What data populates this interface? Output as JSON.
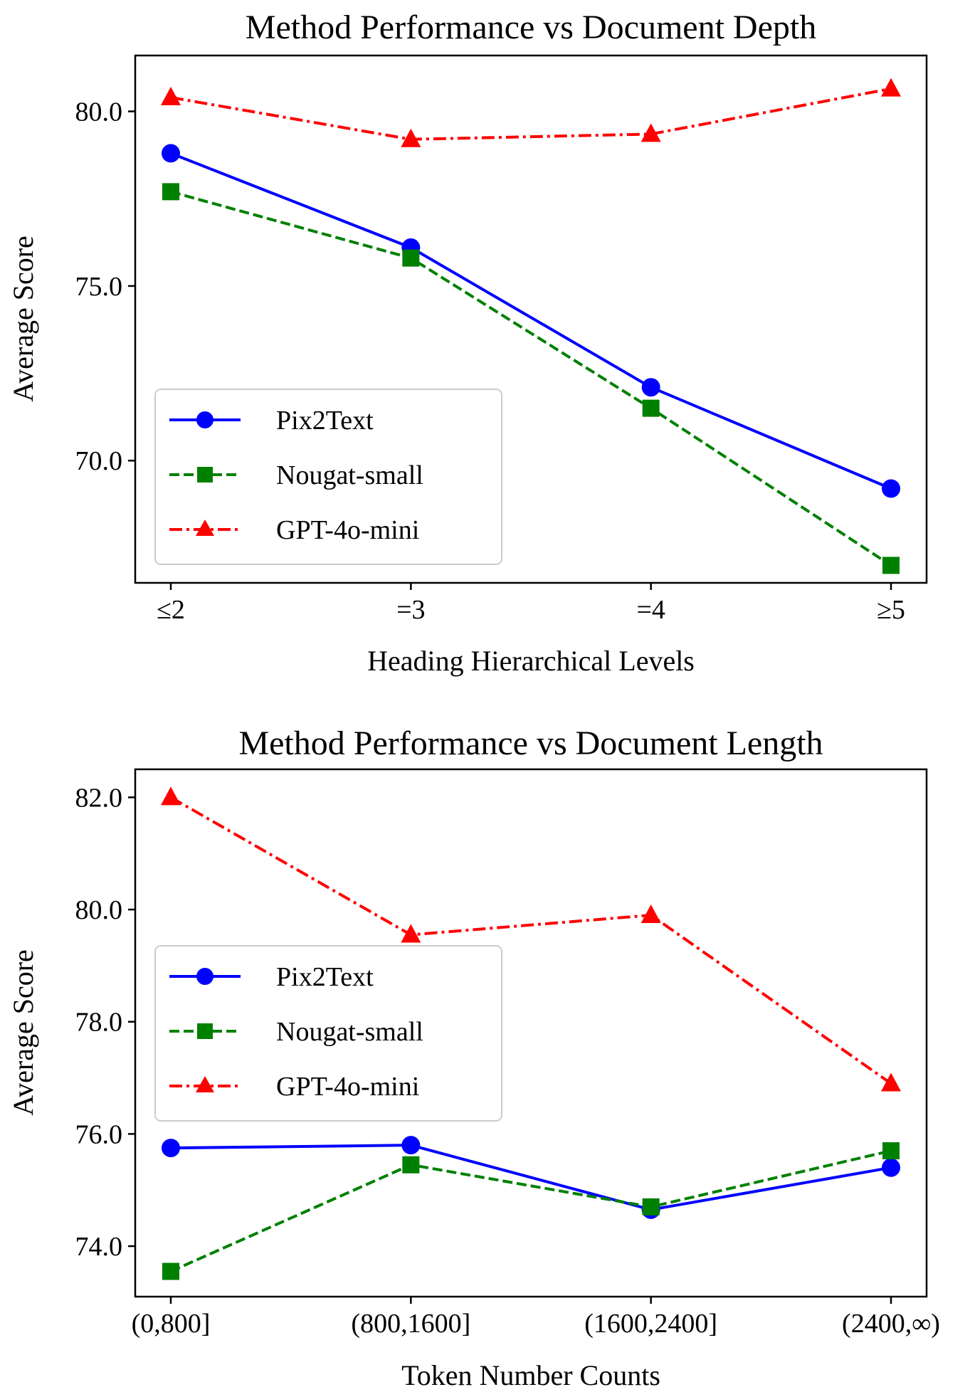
{
  "chart_data": [
    {
      "type": "line",
      "title": "Method Performance vs Document Depth",
      "xlabel": "Heading Hierarchical Levels",
      "ylabel": "Average Score",
      "categories": [
        "≤2",
        "=3",
        "=4",
        "≥5"
      ],
      "ylim": [
        66.5,
        81.6
      ],
      "yticks": [
        70,
        75,
        80
      ],
      "yticklabels": [
        "70.0",
        "75.0",
        "80.0"
      ],
      "grid": false,
      "legend_position": "lower-left",
      "series": [
        {
          "name": "Pix2Text",
          "color": "#0000ff",
          "marker": "circle",
          "dash": "solid",
          "values": [
            78.8,
            76.1,
            72.1,
            69.2
          ]
        },
        {
          "name": "Nougat-small",
          "color": "#008000",
          "marker": "square",
          "dash": "dashed",
          "values": [
            77.7,
            75.8,
            71.5,
            67.0
          ]
        },
        {
          "name": "GPT-4o-mini",
          "color": "#ff0000",
          "marker": "triangle",
          "dash": "dashdot",
          "values": [
            80.4,
            79.2,
            79.35,
            80.65
          ]
        }
      ]
    },
    {
      "type": "line",
      "title": "Method Performance vs Document Length",
      "xlabel": "Token Number Counts",
      "ylabel": "Average Score",
      "categories": [
        "(0,800]",
        "(800,1600]",
        "(1600,2400]",
        "(2400,∞)"
      ],
      "ylim": [
        73.1,
        82.5
      ],
      "yticks": [
        74,
        76,
        78,
        80,
        82
      ],
      "yticklabels": [
        "74.0",
        "76.0",
        "78.0",
        "80.0",
        "82.0"
      ],
      "grid": false,
      "legend_position": "center-left",
      "series": [
        {
          "name": "Pix2Text",
          "color": "#0000ff",
          "marker": "circle",
          "dash": "solid",
          "values": [
            75.75,
            75.8,
            74.65,
            75.4
          ]
        },
        {
          "name": "Nougat-small",
          "color": "#008000",
          "marker": "square",
          "dash": "dashed",
          "values": [
            73.55,
            75.45,
            74.7,
            75.7
          ]
        },
        {
          "name": "GPT-4o-mini",
          "color": "#ff0000",
          "marker": "triangle",
          "dash": "dashdot",
          "values": [
            82.0,
            79.55,
            79.9,
            76.9
          ]
        }
      ]
    }
  ]
}
